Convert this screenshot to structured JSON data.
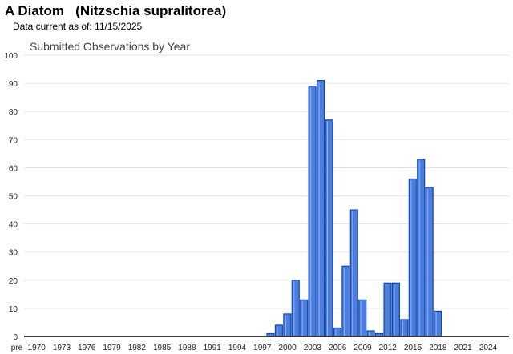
{
  "header": {
    "title": "A Diatom   (Nitzschia supralitorea)",
    "data_current": "Data current as of: 11/15/2025"
  },
  "chart_data": {
    "type": "bar",
    "title": "Submitted Observations by Year",
    "xlabel": "",
    "ylabel": "",
    "ylim": [
      0,
      100
    ],
    "yticks": [
      0,
      10,
      20,
      30,
      40,
      50,
      60,
      70,
      80,
      90,
      100
    ],
    "grid": true,
    "bar_color": "#4a7fe0",
    "bar_edge": "#1a46a8",
    "categories": [
      "pre",
      "1970",
      "1971",
      "1972",
      "1973",
      "1974",
      "1975",
      "1976",
      "1977",
      "1978",
      "1979",
      "1980",
      "1981",
      "1982",
      "1983",
      "1984",
      "1985",
      "1986",
      "1987",
      "1988",
      "1989",
      "1990",
      "1991",
      "1992",
      "1993",
      "1994",
      "1995",
      "1996",
      "1997",
      "1998",
      "1999",
      "2000",
      "2001",
      "2002",
      "2003",
      "2004",
      "2005",
      "2006",
      "2007",
      "2008",
      "2009",
      "2010",
      "2011",
      "2012",
      "2013",
      "2014",
      "2015",
      "2016",
      "2017",
      "2018",
      "2019",
      "2020",
      "2021",
      "2022",
      "2023",
      "2024",
      "2025",
      "2026"
    ],
    "tick_labels": [
      "pre",
      "1970",
      "1973",
      "1976",
      "1979",
      "1982",
      "1985",
      "1988",
      "1991",
      "1994",
      "1997",
      "2000",
      "2003",
      "2006",
      "2009",
      "2012",
      "2015",
      "2018",
      "2021",
      "2024"
    ],
    "values": [
      0,
      0,
      0,
      0,
      0,
      0,
      0,
      0,
      0,
      0,
      0,
      0,
      0,
      0,
      0,
      0,
      0,
      0,
      0,
      0,
      0,
      0,
      0,
      0,
      0,
      0,
      0,
      0,
      0,
      1,
      4,
      8,
      20,
      13,
      89,
      91,
      77,
      3,
      25,
      45,
      13,
      2,
      1,
      19,
      19,
      6,
      56,
      63,
      53,
      9,
      0,
      0,
      0,
      0,
      0,
      0,
      0,
      0
    ]
  }
}
